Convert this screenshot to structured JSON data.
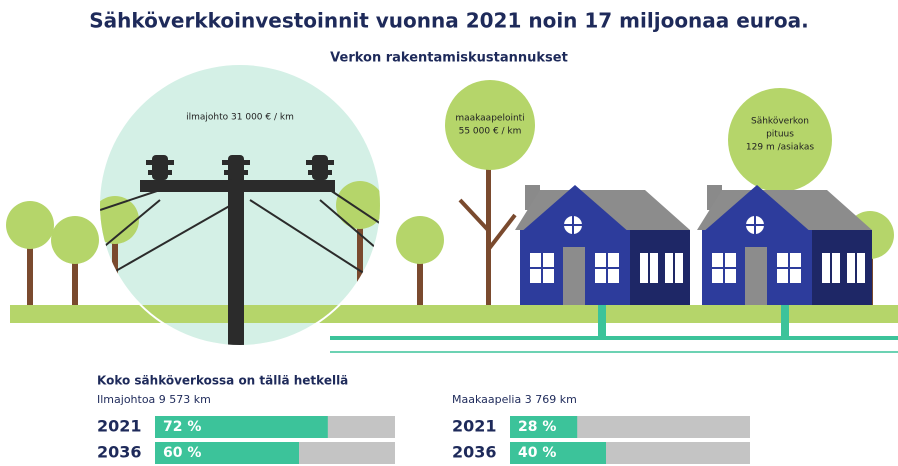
{
  "title": "Sähköverkkoinvestoinnit vuonna 2021 noin 17 miljoonaa euroa.",
  "subtitle": "Verkon rakentamiskustannukset",
  "annotations": {
    "overhead": "ilmajohto 31 000 € / km",
    "underground": [
      "maakaapelointi",
      "55 000 € / km"
    ],
    "network_length": [
      "Sähköverkon",
      "pituus",
      "129 m /asiakas"
    ]
  },
  "summary": {
    "heading": "Koko sähköverkossa on tällä hetkellä",
    "xlim": [
      0,
      100
    ],
    "bar_color": "#3cc39a",
    "track_color": "#c4c4c4",
    "groups": [
      {
        "name": "Ilmajohtoa 9 573 km",
        "rows": [
          {
            "year": "2021",
            "value": 72,
            "value_label": "72 %"
          },
          {
            "year": "2036",
            "value": 60,
            "value_label": "60 %"
          }
        ]
      },
      {
        "name": "Maakaapelia 3 769 km",
        "rows": [
          {
            "year": "2021",
            "value": 28,
            "value_label": "28 %"
          },
          {
            "year": "2036",
            "value": 40,
            "value_label": "40 %"
          }
        ]
      }
    ]
  }
}
